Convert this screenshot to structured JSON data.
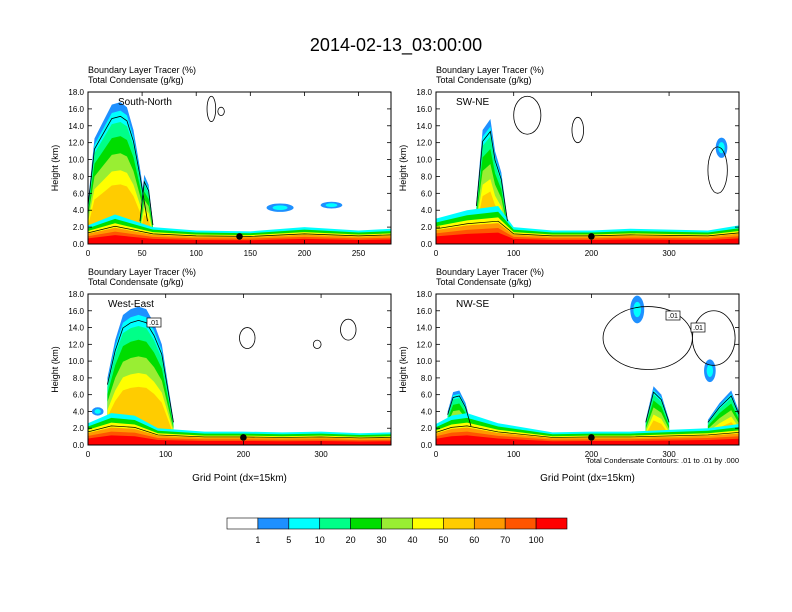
{
  "chart_data": {
    "type": "heatmap",
    "title": "2014-02-13_03:00:00",
    "variables": [
      "Boundary Layer Tracer   (%)",
      "Total Condensate   (g/kg)"
    ],
    "xlabel": "Grid Point (dx=15km)",
    "ylabel": "Height (km)",
    "contour_note": "Total Condensate Contours: .01 to .01 by .000",
    "contour_labels": [
      ".01",
      ".01"
    ],
    "colorbar": {
      "colors": [
        "#ffffff",
        "#1e90ff",
        "#00ffff",
        "#00ff88",
        "#00dd00",
        "#99ee33",
        "#ffff00",
        "#ffcc00",
        "#ff9900",
        "#ff5500",
        "#ff0000"
      ],
      "labels": [
        "1",
        "5",
        "10",
        "20",
        "30",
        "40",
        "50",
        "60",
        "70",
        "100"
      ]
    },
    "panels": [
      {
        "label": "South-North",
        "xlim": [
          0,
          280
        ],
        "ylim": [
          0,
          18
        ],
        "xticks": [
          0,
          50,
          100,
          150,
          200,
          250
        ],
        "yticks": [
          0.0,
          2.0,
          4.0,
          6.0,
          8.0,
          10.0,
          12.0,
          14.0,
          16.0,
          18.0
        ],
        "marker_x": 140,
        "surface_layer": {
          "x": [
            0,
            25,
            60,
            100,
            150,
            200,
            250,
            280
          ],
          "top": [
            2.2,
            3.5,
            2.0,
            1.6,
            1.5,
            2.0,
            1.6,
            1.8
          ]
        },
        "plumes": [
          {
            "x": [
              0,
              6,
              14,
              22,
              30,
              36,
              42,
              48,
              55
            ],
            "top": [
              5,
              12.5,
              14.5,
              16.5,
              16.8,
              16.2,
              13.5,
              9,
              3
            ]
          },
          {
            "x": [
              48,
              52,
              56,
              60
            ],
            "top": [
              3,
              8.2,
              7,
              2.5
            ]
          }
        ],
        "spots": [
          {
            "x": [
              165,
              190
            ],
            "y": [
              3.8,
              4.8
            ]
          },
          {
            "x": [
              215,
              235
            ],
            "y": [
              4.2,
              5.0
            ]
          }
        ],
        "contour_blobs": [
          {
            "x": [
              110,
              118
            ],
            "y": [
              14.5,
              17.5
            ]
          },
          {
            "x": [
              120,
              126
            ],
            "y": [
              15.2,
              16.2
            ]
          }
        ]
      },
      {
        "label": "SW-NE",
        "xlim": [
          0,
          390
        ],
        "ylim": [
          0,
          18
        ],
        "xticks": [
          0,
          100,
          200,
          300
        ],
        "yticks": [
          0.0,
          2.0,
          4.0,
          6.0,
          8.0,
          10.0,
          12.0,
          14.0,
          16.0,
          18.0
        ],
        "marker_x": 200,
        "surface_layer": {
          "x": [
            0,
            40,
            80,
            100,
            150,
            200,
            250,
            300,
            350,
            390
          ],
          "top": [
            3.0,
            4.0,
            4.5,
            2.0,
            1.6,
            1.6,
            1.8,
            1.7,
            1.6,
            2.2
          ]
        },
        "plumes": [
          {
            "x": [
              52,
              60,
              70,
              76,
              84,
              92
            ],
            "top": [
              5,
              13.5,
              14.8,
              11,
              8.5,
              3
            ]
          }
        ],
        "spots": [
          {
            "x": [
              360,
              375
            ],
            "y": [
              10.2,
              12.6
            ]
          }
        ],
        "contour_blobs": [
          {
            "x": [
              100,
              135
            ],
            "y": [
              13,
              17.5
            ]
          },
          {
            "x": [
              350,
              375
            ],
            "y": [
              6,
              11.5
            ]
          },
          {
            "x": [
              175,
              190
            ],
            "y": [
              12,
              15
            ]
          }
        ]
      },
      {
        "label": "West-East",
        "xlim": [
          0,
          390
        ],
        "ylim": [
          0,
          18
        ],
        "xticks": [
          0,
          100,
          200,
          300
        ],
        "yticks": [
          0.0,
          2.0,
          4.0,
          6.0,
          8.0,
          10.0,
          12.0,
          14.0,
          16.0,
          18.0
        ],
        "marker_x": 200,
        "surface_layer": {
          "x": [
            0,
            30,
            60,
            90,
            150,
            200,
            250,
            300,
            350,
            390
          ],
          "top": [
            2.6,
            3.8,
            3.5,
            2.0,
            1.6,
            1.6,
            1.5,
            1.6,
            1.4,
            1.5
          ]
        },
        "plumes": [
          {
            "x": [
              25,
              35,
              45,
              55,
              65,
              75,
              85,
              95,
              110
            ],
            "top": [
              8,
              12.5,
              15.5,
              16.2,
              16.5,
              16.2,
              14.5,
              12,
              3
            ]
          }
        ],
        "spots": [
          {
            "x": [
              5,
              20
            ],
            "y": [
              3.5,
              4.5
            ]
          }
        ],
        "contour_blobs": [
          {
            "x": [
              195,
              215
            ],
            "y": [
              11.5,
              14
            ]
          },
          {
            "x": [
              325,
              345
            ],
            "y": [
              12.5,
              15
            ]
          },
          {
            "x": [
              290,
              300
            ],
            "y": [
              11.5,
              12.5
            ]
          }
        ]
      },
      {
        "label": "NW-SE",
        "xlim": [
          0,
          390
        ],
        "ylim": [
          0,
          18
        ],
        "xticks": [
          0,
          100,
          200,
          300
        ],
        "yticks": [
          0.0,
          2.0,
          4.0,
          6.0,
          8.0,
          10.0,
          12.0,
          14.0,
          16.0,
          18.0
        ],
        "marker_x": 200,
        "surface_layer": {
          "x": [
            0,
            20,
            40,
            80,
            150,
            200,
            250,
            300,
            350,
            390
          ],
          "top": [
            2.5,
            3.5,
            3.8,
            2.6,
            1.5,
            1.6,
            1.6,
            1.8,
            2.0,
            2.5
          ]
        },
        "plumes": [
          {
            "x": [
              15,
              22,
              30,
              38,
              45
            ],
            "top": [
              4,
              6.3,
              6.5,
              5,
              2.5
            ]
          },
          {
            "x": [
              270,
              280,
              290,
              300
            ],
            "top": [
              3,
              7,
              6,
              3
            ]
          },
          {
            "x": [
              350,
              365,
              380,
              390
            ],
            "top": [
              3,
              5,
              6.5,
              4
            ]
          }
        ],
        "spots": [
          {
            "x": [
              250,
              268
            ],
            "y": [
              14.5,
              17.8
            ]
          },
          {
            "x": [
              345,
              360
            ],
            "y": [
              7.5,
              10.2
            ]
          }
        ],
        "contour_blobs": [
          {
            "x": [
              215,
              330
            ],
            "y": [
              9,
              16.5
            ]
          },
          {
            "x": [
              330,
              385
            ],
            "y": [
              9.5,
              16
            ]
          }
        ]
      }
    ]
  }
}
